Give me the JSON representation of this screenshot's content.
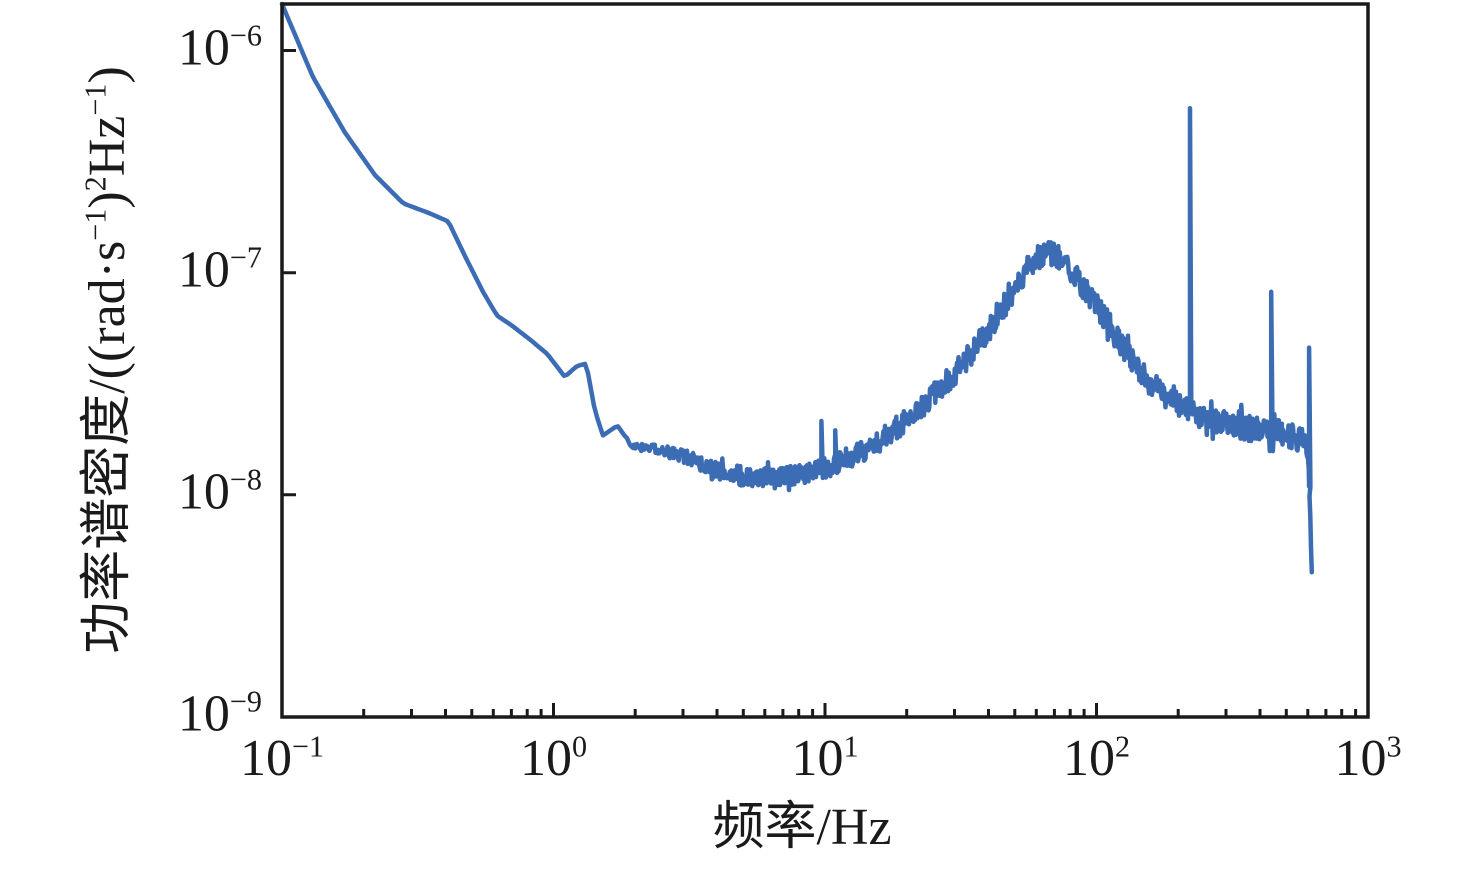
{
  "figure": {
    "background": "#ffffff",
    "axis_color": "#1a1a1a",
    "xlabel": "频率/Hz",
    "ylabel": "功率谱密度/((rad·s⁻¹)²Hz⁻¹)",
    "ylabel_segments": [
      {
        "t": "功率谱密度/((rad·s"
      },
      {
        "sup": "−1"
      },
      {
        "t": ")"
      },
      {
        "sup": "2"
      },
      {
        "t": "Hz"
      },
      {
        "sup": "−1"
      },
      {
        "t": ")"
      }
    ],
    "x_tick_exponents": [
      "−1",
      "0",
      "1",
      "2",
      "3"
    ],
    "y_tick_exponents": [
      "−6",
      "−7",
      "−8",
      "−9"
    ]
  },
  "chart_data": {
    "type": "line",
    "title": "",
    "xlabel": "频率/Hz",
    "ylabel": "功率谱密度/((rad·s⁻¹)²Hz⁻¹)",
    "xscale": "log",
    "yscale": "log",
    "grid": false,
    "legend": false,
    "xlim": [
      0.1,
      1000
    ],
    "ylim": [
      1e-09,
      1.62e-06
    ],
    "x_tick_values": [
      0.1,
      1,
      10,
      100,
      1000
    ],
    "y_tick_values": [
      1e-06,
      1e-07,
      1e-08,
      1e-09
    ],
    "line_color": "#3c6cb4",
    "series": [
      {
        "name": "功率谱密度",
        "description": "Power spectral density of angular rate, smooth 1/f-like decay at low frequency, noise floor ~1.2e-8 near 3-8 Hz, broad resonance peak ~1.25e-7 at ~63 Hz, plateau ~2e-8 from 250-590 Hz, sharp cutoff ~620 Hz",
        "anchors_f": [
          0.1,
          0.13,
          0.17,
          0.22,
          0.28,
          0.35,
          0.41,
          0.47,
          0.55,
          0.62,
          0.7,
          0.82,
          0.95,
          1.1,
          1.22,
          1.32,
          1.42,
          1.52,
          1.72,
          1.95,
          2.4,
          3.0,
          4.0,
          5.5,
          7.5,
          9.5,
          12,
          16,
          22,
          30,
          40,
          50,
          58,
          65,
          72,
          85,
          100,
          120,
          145,
          175,
          210,
          260,
          330,
          420,
          520,
          585,
          602,
          614,
          622
        ],
        "anchors_psd": [
          1.62e-06,
          7.6e-07,
          4.3e-07,
          2.75e-07,
          2.05e-07,
          1.85e-07,
          1.7e-07,
          1.2e-07,
          8.2e-08,
          6.4e-08,
          5.8e-08,
          5e-08,
          4.3e-08,
          3.4e-08,
          3.8e-08,
          3.9e-08,
          2.4e-08,
          1.85e-08,
          2.05e-08,
          1.65e-08,
          1.6e-08,
          1.5e-08,
          1.28e-08,
          1.18e-08,
          1.22e-08,
          1.3e-08,
          1.45e-08,
          1.75e-08,
          2.4e-08,
          3.5e-08,
          5.5e-08,
          8.5e-08,
          1.12e-07,
          1.25e-07,
          1.2e-07,
          9.5e-08,
          7.2e-08,
          5e-08,
          3.6e-08,
          2.85e-08,
          2.45e-08,
          2.15e-08,
          2.05e-08,
          1.95e-08,
          1.85e-08,
          1.75e-08,
          1.5e-08,
          7e-09,
          4.2e-09
        ],
        "noise_profile_f": [
          0.1,
          1.8,
          2.0,
          3.0,
          5,
          10,
          15,
          30,
          60,
          100,
          150,
          200,
          300,
          500,
          590,
          605,
          622
        ],
        "noise_profile_amp_decades": [
          0,
          0,
          0.015,
          0.03,
          0.045,
          0.05,
          0.05,
          0.055,
          0.055,
          0.06,
          0.055,
          0.05,
          0.06,
          0.06,
          0.055,
          0.03,
          0.01
        ],
        "spikes": [
          {
            "f": 9.7,
            "psd": 2.15e-08
          },
          {
            "f": 10.9,
            "psd": 1.95e-08
          },
          {
            "f": 221,
            "psd": 5.5e-07
          },
          {
            "f": 440,
            "psd": 8.2e-08
          },
          {
            "f": 607,
            "psd": 4.6e-08
          }
        ]
      }
    ]
  }
}
